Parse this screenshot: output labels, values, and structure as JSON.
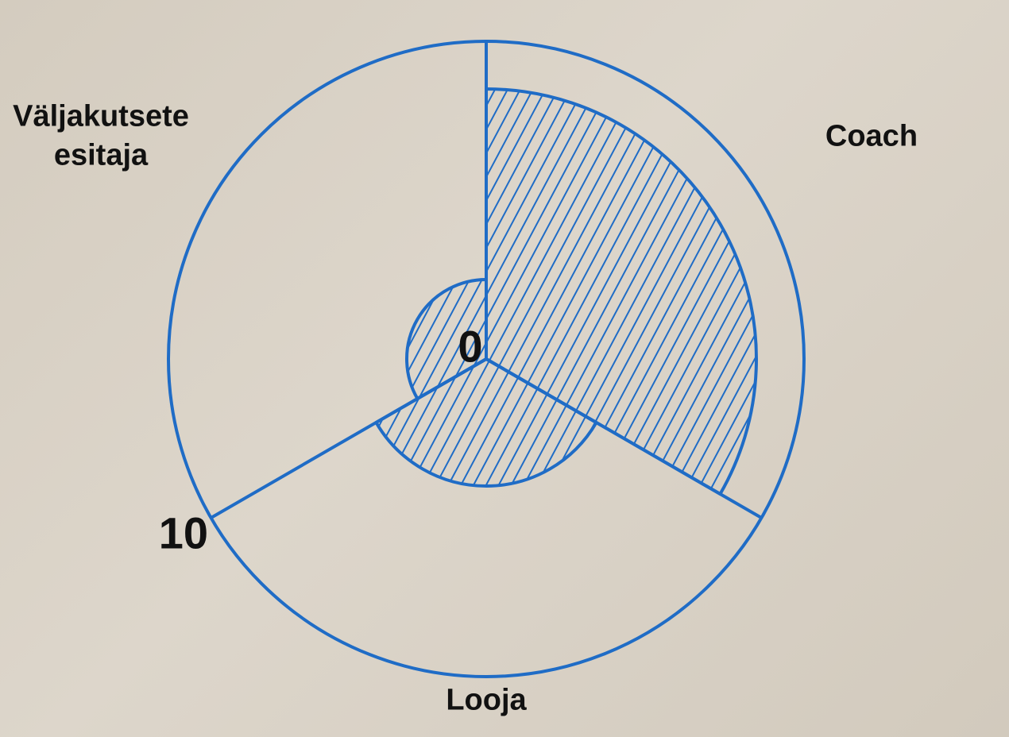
{
  "chart_data": {
    "type": "polar",
    "categories": [
      "Coach",
      "Looja",
      "Väljakutsete esitaja"
    ],
    "values": [
      8.5,
      4,
      2.5
    ],
    "color": "#1f6cc6",
    "rlim": [
      0,
      10
    ],
    "rticks": [
      0,
      10
    ]
  }
}
